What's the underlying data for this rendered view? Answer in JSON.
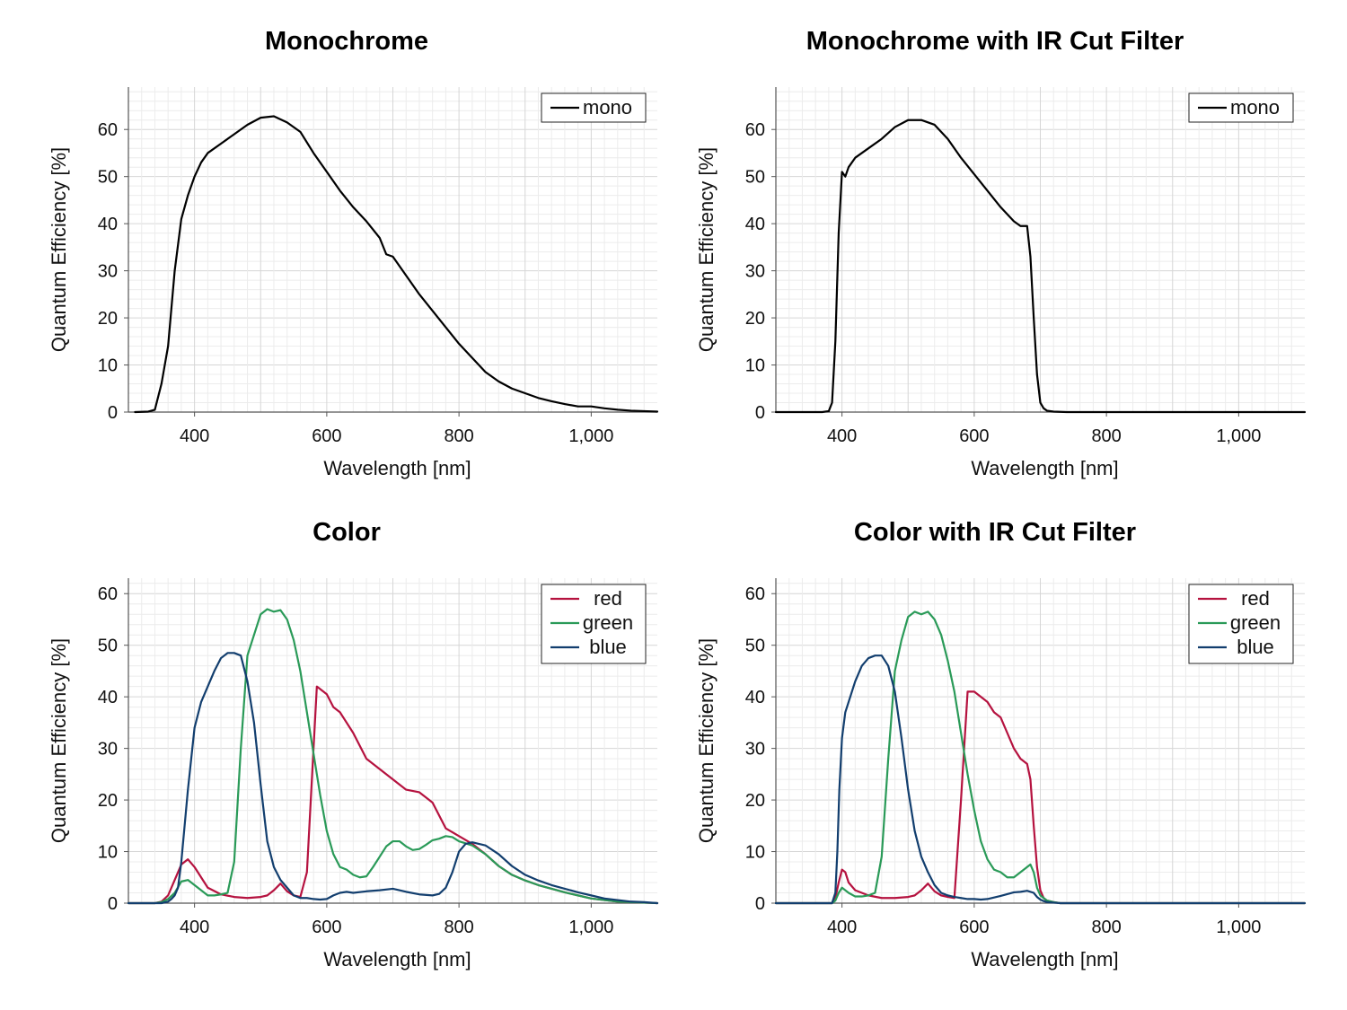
{
  "chart_data": [
    {
      "type": "line",
      "title": "Monochrome",
      "xlabel": "Wavelength [nm]",
      "ylabel": "Quantum Efficiency [%]",
      "xlim": [
        300,
        1100
      ],
      "ylim": [
        0,
        69
      ],
      "xticks": [
        400,
        600,
        800,
        1000
      ],
      "xtick_labels": [
        "400",
        "600",
        "800",
        "1,000"
      ],
      "yticks": [
        0,
        10,
        20,
        30,
        40,
        50,
        60
      ],
      "ytick_labels": [
        "0",
        "10",
        "20",
        "30",
        "40",
        "50",
        "60"
      ],
      "grid": true,
      "legend": "top-right",
      "series": [
        {
          "name": "mono",
          "color": "#000000",
          "x": [
            310,
            330,
            340,
            350,
            360,
            370,
            380,
            390,
            400,
            410,
            420,
            440,
            460,
            480,
            500,
            520,
            540,
            560,
            580,
            600,
            620,
            640,
            660,
            680,
            690,
            700,
            720,
            740,
            760,
            780,
            800,
            820,
            840,
            860,
            880,
            900,
            920,
            940,
            960,
            980,
            1000,
            1020,
            1040,
            1060,
            1080,
            1100
          ],
          "y": [
            0,
            0.1,
            0.5,
            6,
            14,
            30,
            41,
            46,
            50,
            53,
            55,
            57,
            59,
            61,
            62.5,
            62.8,
            61.5,
            59.5,
            55,
            51,
            47,
            43.5,
            40.5,
            37,
            33.5,
            33,
            29,
            25,
            21.5,
            18,
            14.5,
            11.5,
            8.5,
            6.5,
            5,
            4,
            3,
            2.3,
            1.7,
            1.2,
            1.2,
            0.8,
            0.5,
            0.3,
            0.2,
            0.1
          ]
        }
      ]
    },
    {
      "type": "line",
      "title": "Monochrome with IR Cut Filter",
      "xlabel": "Wavelength [nm]",
      "ylabel": "Quantum Efficiency [%]",
      "xlim": [
        300,
        1100
      ],
      "ylim": [
        0,
        69
      ],
      "xticks": [
        400,
        600,
        800,
        1000
      ],
      "xtick_labels": [
        "400",
        "600",
        "800",
        "1,000"
      ],
      "yticks": [
        0,
        10,
        20,
        30,
        40,
        50,
        60
      ],
      "ytick_labels": [
        "0",
        "10",
        "20",
        "30",
        "40",
        "50",
        "60"
      ],
      "grid": true,
      "legend": "top-right",
      "series": [
        {
          "name": "mono",
          "color": "#000000",
          "x": [
            300,
            370,
            380,
            385,
            390,
            395,
            400,
            405,
            410,
            420,
            440,
            460,
            480,
            500,
            520,
            540,
            560,
            580,
            600,
            620,
            640,
            660,
            670,
            680,
            685,
            690,
            695,
            700,
            705,
            710,
            720,
            740,
            1100
          ],
          "y": [
            0,
            0,
            0.2,
            2,
            15,
            38,
            51,
            50,
            52,
            54,
            56,
            58,
            60.5,
            62,
            62,
            61,
            58,
            54,
            50.5,
            47,
            43.5,
            40.5,
            39.5,
            39.5,
            33,
            20,
            8,
            2,
            0.8,
            0.3,
            0.1,
            0,
            0
          ]
        }
      ]
    },
    {
      "type": "line",
      "title": "Color",
      "xlabel": "Wavelength [nm]",
      "ylabel": "Quantum Efficiency [%]",
      "xlim": [
        300,
        1100
      ],
      "ylim": [
        0,
        63
      ],
      "xticks": [
        400,
        600,
        800,
        1000
      ],
      "xtick_labels": [
        "400",
        "600",
        "800",
        "1,000"
      ],
      "yticks": [
        0,
        10,
        20,
        30,
        40,
        50,
        60
      ],
      "ytick_labels": [
        "0",
        "10",
        "20",
        "30",
        "40",
        "50",
        "60"
      ],
      "grid": true,
      "legend": "top-right",
      "series": [
        {
          "name": "red",
          "color": "#b5123f",
          "x": [
            300,
            340,
            350,
            360,
            370,
            380,
            390,
            400,
            410,
            420,
            440,
            460,
            480,
            500,
            510,
            520,
            530,
            540,
            550,
            560,
            570,
            580,
            585,
            590,
            600,
            610,
            620,
            640,
            660,
            680,
            700,
            720,
            740,
            760,
            780,
            800,
            820,
            840,
            860,
            880,
            900,
            920,
            940,
            960,
            980,
            1000,
            1020,
            1040,
            1060,
            1080,
            1100
          ],
          "y": [
            0,
            0,
            0.3,
            1.5,
            4.5,
            7.5,
            8.5,
            7,
            5,
            3,
            1.7,
            1.2,
            1.0,
            1.2,
            1.5,
            2.5,
            3.8,
            2.3,
            1.5,
            1.2,
            6,
            30,
            42,
            41.5,
            40.5,
            38,
            37,
            33,
            28,
            26,
            24,
            22,
            21.5,
            19.5,
            14.5,
            13,
            11.5,
            9.5,
            7.2,
            5.5,
            4.4,
            3.5,
            2.8,
            2.1,
            1.5,
            0.9,
            0.6,
            0.3,
            0.2,
            0.1,
            0
          ]
        },
        {
          "name": "green",
          "color": "#2a9a58",
          "x": [
            300,
            340,
            350,
            360,
            370,
            380,
            390,
            400,
            410,
            420,
            430,
            440,
            450,
            460,
            470,
            480,
            490,
            500,
            510,
            520,
            530,
            540,
            550,
            560,
            570,
            580,
            590,
            600,
            610,
            620,
            630,
            640,
            650,
            660,
            670,
            680,
            690,
            700,
            710,
            720,
            730,
            740,
            750,
            760,
            770,
            780,
            790,
            800,
            820,
            840,
            860,
            880,
            900,
            920,
            940,
            960,
            980,
            1000,
            1020,
            1040,
            1060,
            1080,
            1100
          ],
          "y": [
            0,
            0,
            0.2,
            0.8,
            2,
            4.2,
            4.5,
            3.5,
            2.5,
            1.5,
            1.5,
            1.7,
            2,
            8,
            30,
            48,
            52,
            56,
            57,
            56.5,
            56.8,
            55,
            51,
            45,
            37,
            29,
            21,
            14,
            9.5,
            7,
            6.5,
            5.5,
            5,
            5.2,
            7,
            9,
            11,
            12,
            12,
            11,
            10.3,
            10.5,
            11.3,
            12.2,
            12.5,
            13,
            12.8,
            12,
            11.2,
            9.5,
            7.2,
            5.5,
            4.4,
            3.5,
            2.8,
            2.1,
            1.5,
            0.9,
            0.6,
            0.3,
            0.2,
            0.1,
            0
          ]
        },
        {
          "name": "blue",
          "color": "#123e6e",
          "x": [
            300,
            350,
            360,
            365,
            370,
            375,
            380,
            385,
            390,
            395,
            400,
            410,
            420,
            430,
            440,
            450,
            460,
            470,
            480,
            490,
            500,
            510,
            520,
            530,
            540,
            550,
            560,
            570,
            580,
            590,
            600,
            610,
            620,
            630,
            640,
            660,
            680,
            700,
            720,
            740,
            760,
            770,
            780,
            790,
            800,
            810,
            820,
            840,
            860,
            880,
            900,
            920,
            940,
            960,
            980,
            1000,
            1020,
            1040,
            1060,
            1080,
            1100
          ],
          "y": [
            0,
            0,
            0.3,
            0.8,
            1.5,
            3,
            8,
            15,
            22,
            28,
            34,
            39,
            42,
            45,
            47.5,
            48.5,
            48.5,
            48,
            43,
            35,
            23,
            12,
            7,
            4.5,
            3,
            1.5,
            1,
            1,
            0.8,
            0.7,
            0.8,
            1.5,
            2,
            2.2,
            2,
            2.3,
            2.5,
            2.8,
            2.2,
            1.7,
            1.5,
            1.8,
            3,
            6,
            10,
            11.5,
            11.8,
            11.2,
            9.5,
            7.2,
            5.5,
            4.4,
            3.5,
            2.8,
            2.1,
            1.5,
            0.9,
            0.6,
            0.3,
            0.2,
            0
          ]
        }
      ]
    },
    {
      "type": "line",
      "title": "Color with IR Cut Filter",
      "xlabel": "Wavelength [nm]",
      "ylabel": "Quantum Efficiency [%]",
      "xlim": [
        300,
        1100
      ],
      "ylim": [
        0,
        63
      ],
      "xticks": [
        400,
        600,
        800,
        1000
      ],
      "xtick_labels": [
        "400",
        "600",
        "800",
        "1,000"
      ],
      "yticks": [
        0,
        10,
        20,
        30,
        40,
        50,
        60
      ],
      "ytick_labels": [
        "0",
        "10",
        "20",
        "30",
        "40",
        "50",
        "60"
      ],
      "grid": true,
      "legend": "top-right",
      "series": [
        {
          "name": "red",
          "color": "#b5123f",
          "x": [
            300,
            385,
            390,
            395,
            400,
            405,
            410,
            420,
            440,
            460,
            480,
            500,
            510,
            520,
            530,
            540,
            550,
            560,
            570,
            580,
            590,
            600,
            610,
            620,
            630,
            640,
            650,
            660,
            670,
            680,
            685,
            690,
            695,
            700,
            705,
            710,
            720,
            730,
            1100
          ],
          "y": [
            0,
            0,
            1,
            4,
            6.5,
            6,
            4,
            2.5,
            1.5,
            1,
            1,
            1.2,
            1.5,
            2.5,
            3.8,
            2.3,
            1.5,
            1.2,
            1,
            20,
            41,
            41,
            40,
            39,
            37,
            36,
            33,
            30,
            28,
            27,
            24,
            15,
            7,
            2.5,
            1,
            0.5,
            0.2,
            0,
            0
          ]
        },
        {
          "name": "green",
          "color": "#2a9a58",
          "x": [
            300,
            385,
            390,
            395,
            400,
            410,
            420,
            430,
            440,
            450,
            460,
            470,
            480,
            490,
            500,
            510,
            520,
            530,
            540,
            550,
            560,
            570,
            580,
            590,
            600,
            610,
            620,
            630,
            640,
            650,
            660,
            670,
            680,
            685,
            690,
            695,
            700,
            710,
            720,
            730,
            1100
          ],
          "y": [
            0,
            0,
            0.5,
            2,
            3,
            2,
            1.3,
            1.3,
            1.5,
            2,
            9,
            28,
            45,
            51,
            55.5,
            56.5,
            56,
            56.5,
            55,
            52,
            47,
            41,
            33,
            25,
            18,
            12,
            8.5,
            6.5,
            6,
            5,
            5,
            6,
            7,
            7.5,
            6,
            3,
            1.5,
            0.5,
            0.2,
            0,
            0
          ]
        },
        {
          "name": "blue",
          "color": "#123e6e",
          "x": [
            300,
            385,
            390,
            393,
            396,
            400,
            405,
            410,
            420,
            430,
            440,
            450,
            460,
            470,
            480,
            490,
            500,
            510,
            520,
            530,
            540,
            550,
            560,
            570,
            580,
            590,
            600,
            610,
            620,
            640,
            660,
            670,
            680,
            690,
            695,
            700,
            705,
            710,
            720,
            730,
            1100
          ],
          "y": [
            0,
            0,
            2,
            10,
            22,
            32,
            37,
            39,
            43,
            46,
            47.5,
            48,
            48,
            46,
            41,
            32,
            22,
            14,
            9,
            6,
            3.5,
            2,
            1.5,
            1.2,
            1,
            0.8,
            0.8,
            0.7,
            0.8,
            1.4,
            2.1,
            2.2,
            2.4,
            2,
            1.2,
            0.7,
            0.4,
            0.2,
            0.1,
            0,
            0
          ]
        }
      ]
    }
  ]
}
